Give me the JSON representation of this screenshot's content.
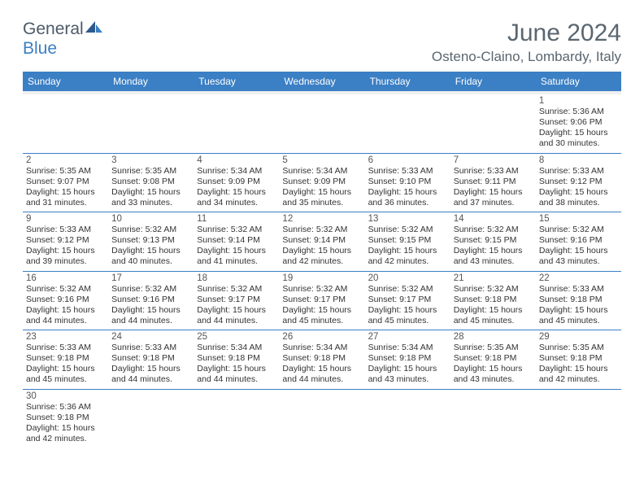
{
  "brand": {
    "name_general": "General",
    "name_blue": "Blue"
  },
  "title": "June 2024",
  "location": "Osteno-Claino, Lombardy, Italy",
  "colors": {
    "header_bg": "#3b7fc4",
    "header_text": "#ffffff",
    "rule": "#3b7fc4",
    "text": "#333333",
    "title_color": "#5a6670"
  },
  "day_headers": [
    "Sunday",
    "Monday",
    "Tuesday",
    "Wednesday",
    "Thursday",
    "Friday",
    "Saturday"
  ],
  "weeks": [
    [
      null,
      null,
      null,
      null,
      null,
      null,
      {
        "n": "1",
        "sunrise": "5:36 AM",
        "sunset": "9:06 PM",
        "daylight": "15 hours and 30 minutes."
      }
    ],
    [
      {
        "n": "2",
        "sunrise": "5:35 AM",
        "sunset": "9:07 PM",
        "daylight": "15 hours and 31 minutes."
      },
      {
        "n": "3",
        "sunrise": "5:35 AM",
        "sunset": "9:08 PM",
        "daylight": "15 hours and 33 minutes."
      },
      {
        "n": "4",
        "sunrise": "5:34 AM",
        "sunset": "9:09 PM",
        "daylight": "15 hours and 34 minutes."
      },
      {
        "n": "5",
        "sunrise": "5:34 AM",
        "sunset": "9:09 PM",
        "daylight": "15 hours and 35 minutes."
      },
      {
        "n": "6",
        "sunrise": "5:33 AM",
        "sunset": "9:10 PM",
        "daylight": "15 hours and 36 minutes."
      },
      {
        "n": "7",
        "sunrise": "5:33 AM",
        "sunset": "9:11 PM",
        "daylight": "15 hours and 37 minutes."
      },
      {
        "n": "8",
        "sunrise": "5:33 AM",
        "sunset": "9:12 PM",
        "daylight": "15 hours and 38 minutes."
      }
    ],
    [
      {
        "n": "9",
        "sunrise": "5:33 AM",
        "sunset": "9:12 PM",
        "daylight": "15 hours and 39 minutes."
      },
      {
        "n": "10",
        "sunrise": "5:32 AM",
        "sunset": "9:13 PM",
        "daylight": "15 hours and 40 minutes."
      },
      {
        "n": "11",
        "sunrise": "5:32 AM",
        "sunset": "9:14 PM",
        "daylight": "15 hours and 41 minutes."
      },
      {
        "n": "12",
        "sunrise": "5:32 AM",
        "sunset": "9:14 PM",
        "daylight": "15 hours and 42 minutes."
      },
      {
        "n": "13",
        "sunrise": "5:32 AM",
        "sunset": "9:15 PM",
        "daylight": "15 hours and 42 minutes."
      },
      {
        "n": "14",
        "sunrise": "5:32 AM",
        "sunset": "9:15 PM",
        "daylight": "15 hours and 43 minutes."
      },
      {
        "n": "15",
        "sunrise": "5:32 AM",
        "sunset": "9:16 PM",
        "daylight": "15 hours and 43 minutes."
      }
    ],
    [
      {
        "n": "16",
        "sunrise": "5:32 AM",
        "sunset": "9:16 PM",
        "daylight": "15 hours and 44 minutes."
      },
      {
        "n": "17",
        "sunrise": "5:32 AM",
        "sunset": "9:16 PM",
        "daylight": "15 hours and 44 minutes."
      },
      {
        "n": "18",
        "sunrise": "5:32 AM",
        "sunset": "9:17 PM",
        "daylight": "15 hours and 44 minutes."
      },
      {
        "n": "19",
        "sunrise": "5:32 AM",
        "sunset": "9:17 PM",
        "daylight": "15 hours and 45 minutes."
      },
      {
        "n": "20",
        "sunrise": "5:32 AM",
        "sunset": "9:17 PM",
        "daylight": "15 hours and 45 minutes."
      },
      {
        "n": "21",
        "sunrise": "5:32 AM",
        "sunset": "9:18 PM",
        "daylight": "15 hours and 45 minutes."
      },
      {
        "n": "22",
        "sunrise": "5:33 AM",
        "sunset": "9:18 PM",
        "daylight": "15 hours and 45 minutes."
      }
    ],
    [
      {
        "n": "23",
        "sunrise": "5:33 AM",
        "sunset": "9:18 PM",
        "daylight": "15 hours and 45 minutes."
      },
      {
        "n": "24",
        "sunrise": "5:33 AM",
        "sunset": "9:18 PM",
        "daylight": "15 hours and 44 minutes."
      },
      {
        "n": "25",
        "sunrise": "5:34 AM",
        "sunset": "9:18 PM",
        "daylight": "15 hours and 44 minutes."
      },
      {
        "n": "26",
        "sunrise": "5:34 AM",
        "sunset": "9:18 PM",
        "daylight": "15 hours and 44 minutes."
      },
      {
        "n": "27",
        "sunrise": "5:34 AM",
        "sunset": "9:18 PM",
        "daylight": "15 hours and 43 minutes."
      },
      {
        "n": "28",
        "sunrise": "5:35 AM",
        "sunset": "9:18 PM",
        "daylight": "15 hours and 43 minutes."
      },
      {
        "n": "29",
        "sunrise": "5:35 AM",
        "sunset": "9:18 PM",
        "daylight": "15 hours and 42 minutes."
      }
    ],
    [
      {
        "n": "30",
        "sunrise": "5:36 AM",
        "sunset": "9:18 PM",
        "daylight": "15 hours and 42 minutes."
      },
      null,
      null,
      null,
      null,
      null,
      null
    ]
  ],
  "labels": {
    "sunrise_prefix": "Sunrise: ",
    "sunset_prefix": "Sunset: ",
    "daylight_prefix": "Daylight: "
  }
}
